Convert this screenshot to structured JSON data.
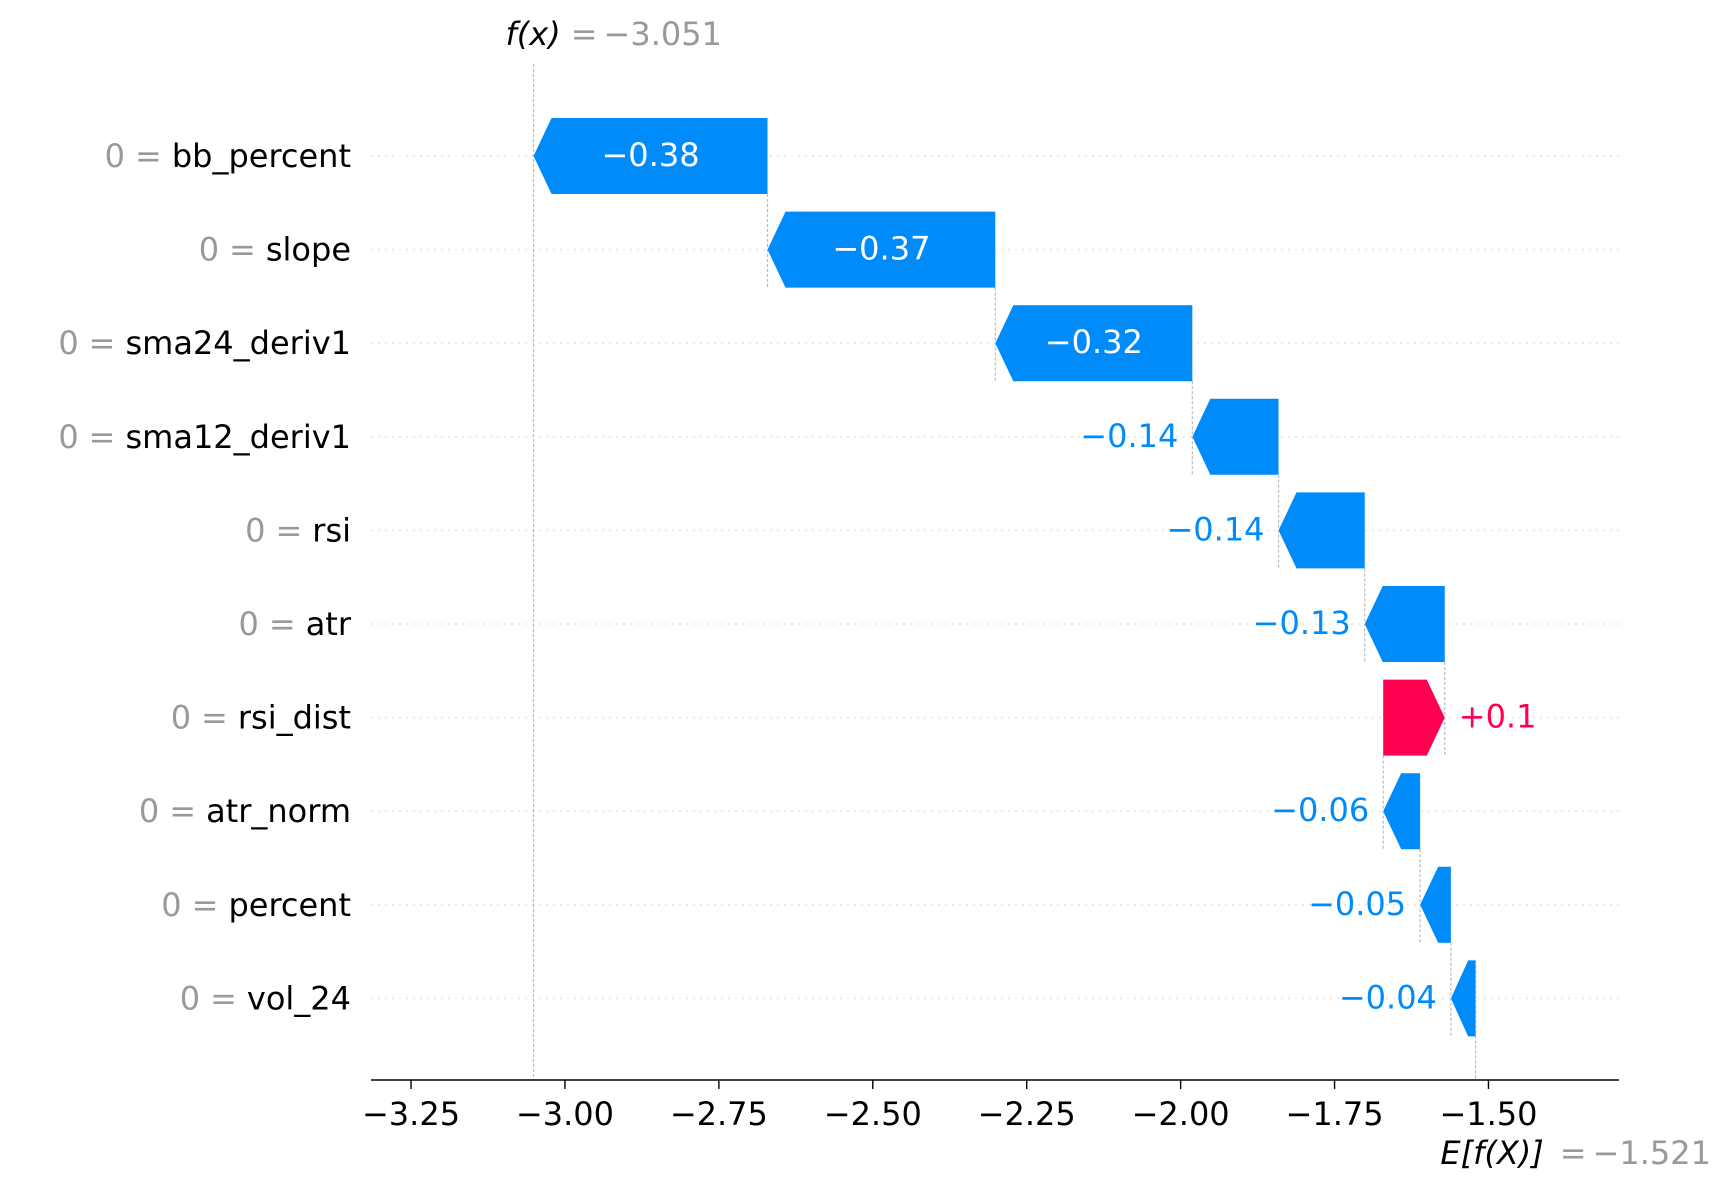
{
  "chart_data": {
    "type": "waterfall",
    "features": [
      "bb_percent",
      "slope",
      "sma24_deriv1",
      "sma12_deriv1",
      "rsi",
      "atr",
      "rsi_dist",
      "atr_norm",
      "percent",
      "vol_24"
    ],
    "feature_values": [
      "0",
      "0",
      "0",
      "0",
      "0",
      "0",
      "0",
      "0",
      "0",
      "0"
    ],
    "equals": "=",
    "values": [
      -0.38,
      -0.37,
      -0.32,
      -0.14,
      -0.14,
      -0.13,
      0.1,
      -0.06,
      -0.05,
      -0.04
    ],
    "value_labels": [
      "−0.38",
      "−0.37",
      "−0.32",
      "−0.14",
      "−0.14",
      "−0.13",
      "+0.1",
      "−0.06",
      "−0.05",
      "−0.04"
    ],
    "base": {
      "label": "E[f(X)]",
      "value": -1.521,
      "value_label": "−1.521"
    },
    "output": {
      "label": "f(x)",
      "value": -3.051,
      "value_label": "−3.051"
    },
    "xlim": [
      -3.315,
      -1.288
    ],
    "xticks": [
      {
        "value": -3.25,
        "label": "−3.25"
      },
      {
        "value": -3.0,
        "label": "−3.00"
      },
      {
        "value": -2.75,
        "label": "−2.75"
      },
      {
        "value": -2.5,
        "label": "−2.50"
      },
      {
        "value": -2.25,
        "label": "−2.25"
      },
      {
        "value": -2.0,
        "label": "−2.00"
      },
      {
        "value": -1.75,
        "label": "−1.75"
      },
      {
        "value": -1.5,
        "label": "−1.50"
      }
    ],
    "colors": {
      "positive": "#ff0051",
      "negative": "#008bfb"
    },
    "grid": true
  }
}
